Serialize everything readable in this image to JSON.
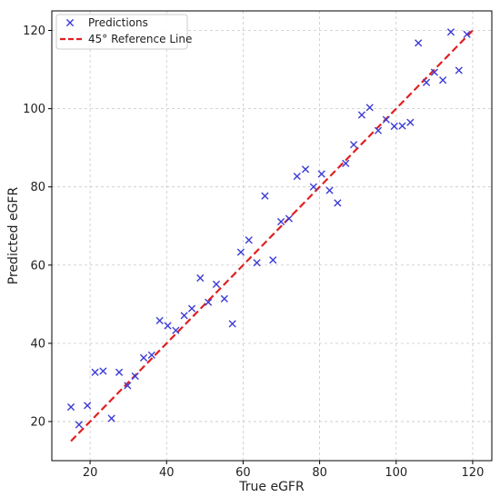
{
  "chart_data": {
    "type": "scatter",
    "title": "",
    "xlabel": "True eGFR",
    "ylabel": "Predicted eGFR",
    "xlim": [
      10,
      125
    ],
    "ylim": [
      10,
      125
    ],
    "xticks": [
      20,
      40,
      60,
      80,
      100,
      120
    ],
    "yticks": [
      20,
      40,
      60,
      80,
      100,
      120
    ],
    "grid": true,
    "legend_placement": "top-left",
    "series": [
      {
        "name": "Predictions",
        "kind": "scatter",
        "marker": "x",
        "color": "#3b3bd6",
        "points": [
          [
            15.0,
            23.7
          ],
          [
            17.1,
            19.2
          ],
          [
            19.3,
            24.1
          ],
          [
            21.3,
            32.6
          ],
          [
            23.4,
            32.9
          ],
          [
            25.6,
            20.8
          ],
          [
            27.6,
            32.6
          ],
          [
            29.8,
            29.2
          ],
          [
            31.8,
            31.6
          ],
          [
            34.0,
            36.3
          ],
          [
            36.1,
            37.0
          ],
          [
            38.2,
            45.8
          ],
          [
            40.3,
            44.5
          ],
          [
            42.4,
            43.3
          ],
          [
            44.6,
            47.1
          ],
          [
            46.6,
            48.9
          ],
          [
            48.8,
            56.7
          ],
          [
            50.9,
            50.5
          ],
          [
            53.0,
            55.1
          ],
          [
            55.1,
            51.4
          ],
          [
            57.2,
            45.0
          ],
          [
            59.4,
            63.3
          ],
          [
            61.5,
            66.4
          ],
          [
            63.6,
            60.6
          ],
          [
            65.7,
            77.7
          ],
          [
            67.8,
            61.3
          ],
          [
            69.9,
            71.1
          ],
          [
            72.0,
            71.9
          ],
          [
            74.1,
            82.7
          ],
          [
            76.3,
            84.5
          ],
          [
            78.4,
            80.0
          ],
          [
            80.5,
            83.3
          ],
          [
            82.6,
            79.1
          ],
          [
            84.7,
            75.9
          ],
          [
            86.8,
            86.0
          ],
          [
            88.9,
            90.8
          ],
          [
            91.0,
            98.4
          ],
          [
            93.1,
            100.3
          ],
          [
            95.3,
            94.4
          ],
          [
            97.4,
            97.2
          ],
          [
            99.5,
            95.5
          ],
          [
            101.6,
            95.6
          ],
          [
            103.7,
            96.5
          ],
          [
            105.8,
            116.8
          ],
          [
            107.9,
            106.7
          ],
          [
            110.0,
            109.3
          ],
          [
            112.2,
            107.3
          ],
          [
            114.3,
            119.6
          ],
          [
            116.4,
            109.8
          ],
          [
            118.5,
            119.0
          ]
        ]
      },
      {
        "name": "45° Reference Line",
        "kind": "line",
        "style": "dashed",
        "color": "#e02020",
        "points": [
          [
            15,
            15
          ],
          [
            120,
            120
          ]
        ]
      }
    ]
  }
}
